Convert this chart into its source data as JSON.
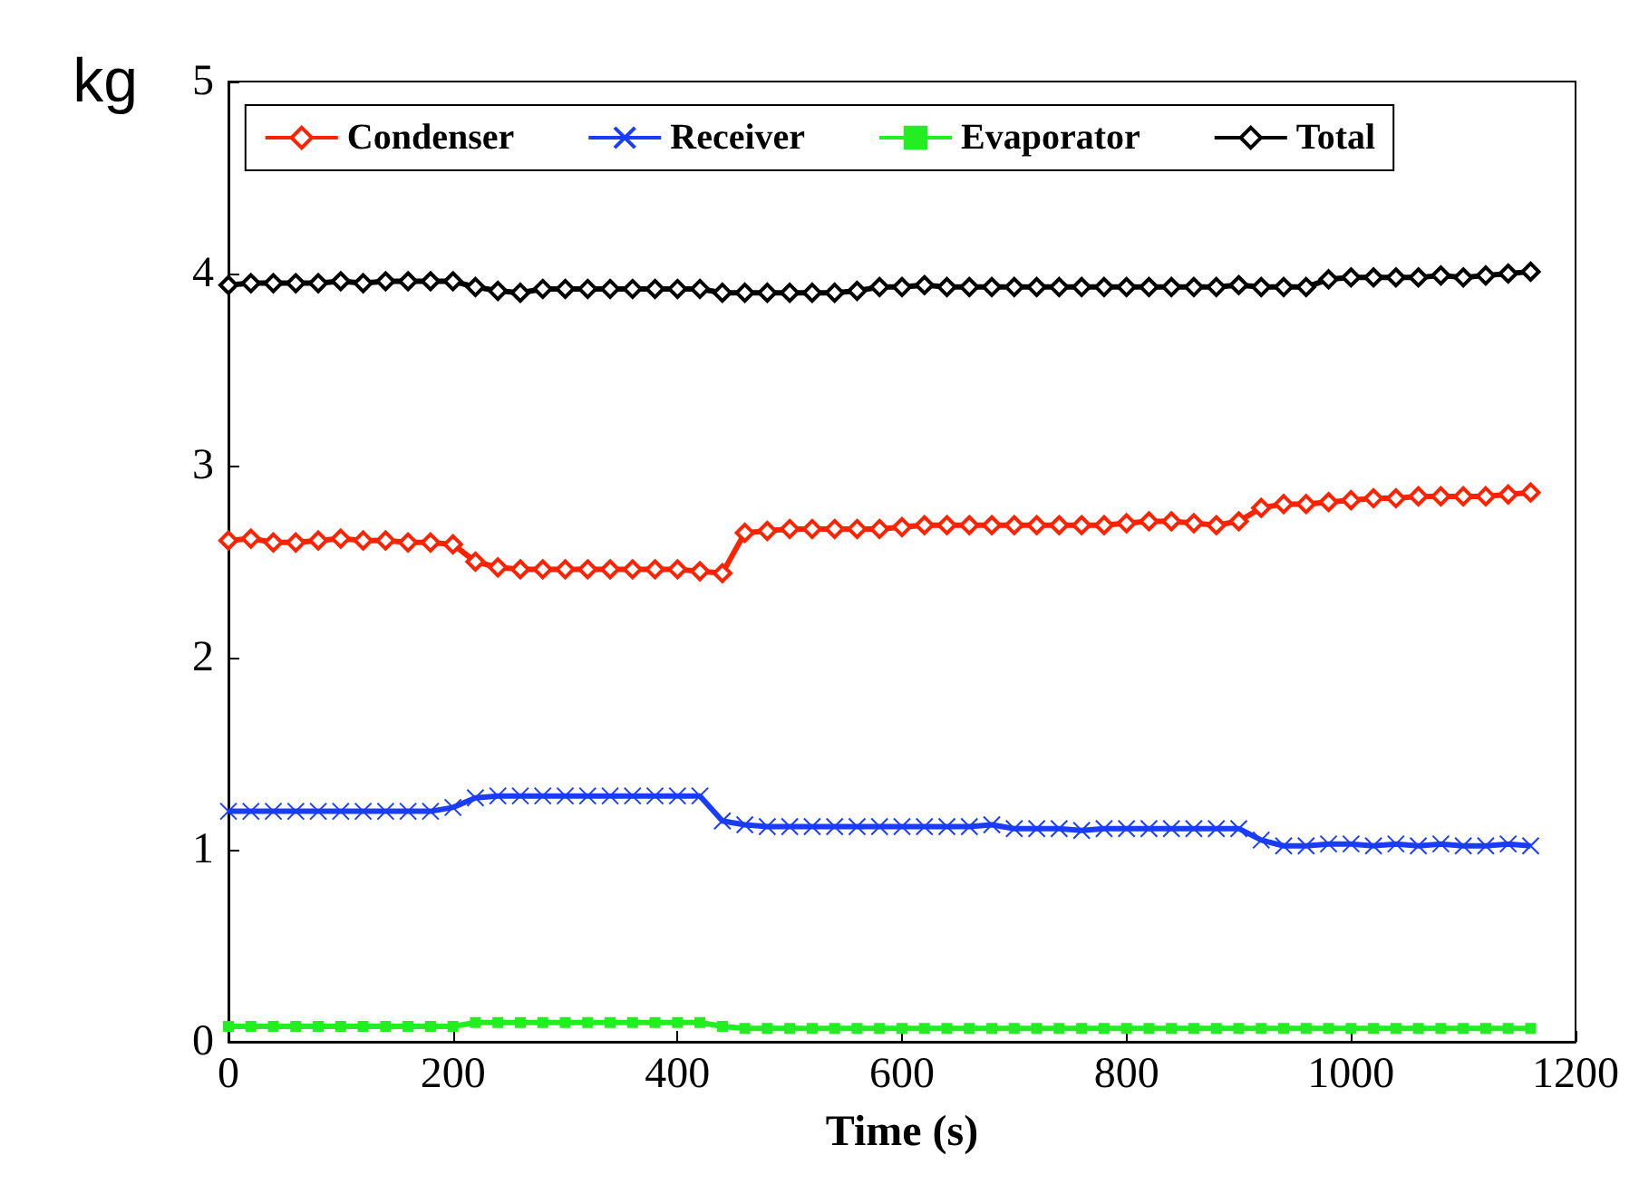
{
  "chart_data": {
    "type": "line",
    "xlabel": "Time (s)",
    "ylabel": "kg",
    "legend": "top",
    "grid": false,
    "line_style": "solid",
    "x": [
      0,
      20,
      40,
      60,
      80,
      100,
      120,
      140,
      160,
      180,
      200,
      220,
      240,
      260,
      280,
      300,
      320,
      340,
      360,
      380,
      400,
      420,
      440,
      460,
      480,
      500,
      520,
      540,
      560,
      580,
      600,
      620,
      640,
      660,
      680,
      700,
      720,
      740,
      760,
      780,
      800,
      820,
      840,
      860,
      880,
      900,
      920,
      940,
      960,
      980,
      1000,
      1020,
      1040,
      1060,
      1080,
      1100,
      1120,
      1140,
      1160
    ],
    "xlim": [
      0,
      1200
    ],
    "xticks": [
      0,
      200,
      400,
      600,
      800,
      1000,
      1200
    ],
    "ylim": [
      0,
      5
    ],
    "yticks": [
      0,
      1,
      2,
      3,
      4,
      5
    ],
    "series": [
      {
        "name": "Condenser",
        "color": "#ff2200",
        "marker": "diamond",
        "values": [
          2.61,
          2.62,
          2.6,
          2.6,
          2.61,
          2.62,
          2.61,
          2.61,
          2.6,
          2.6,
          2.59,
          2.5,
          2.47,
          2.46,
          2.46,
          2.46,
          2.46,
          2.46,
          2.46,
          2.46,
          2.46,
          2.45,
          2.44,
          2.65,
          2.66,
          2.67,
          2.67,
          2.67,
          2.67,
          2.67,
          2.68,
          2.69,
          2.69,
          2.69,
          2.69,
          2.69,
          2.69,
          2.69,
          2.69,
          2.69,
          2.7,
          2.71,
          2.71,
          2.7,
          2.69,
          2.71,
          2.78,
          2.8,
          2.8,
          2.81,
          2.82,
          2.83,
          2.83,
          2.84,
          2.84,
          2.84,
          2.84,
          2.85,
          2.86
        ]
      },
      {
        "name": "Receiver",
        "color": "#1a3cff",
        "marker": "cross",
        "values": [
          1.2,
          1.2,
          1.2,
          1.2,
          1.2,
          1.2,
          1.2,
          1.2,
          1.2,
          1.2,
          1.22,
          1.27,
          1.28,
          1.28,
          1.28,
          1.28,
          1.28,
          1.28,
          1.28,
          1.28,
          1.28,
          1.28,
          1.15,
          1.13,
          1.12,
          1.12,
          1.12,
          1.12,
          1.12,
          1.12,
          1.12,
          1.12,
          1.12,
          1.12,
          1.13,
          1.11,
          1.11,
          1.11,
          1.1,
          1.11,
          1.11,
          1.11,
          1.11,
          1.11,
          1.11,
          1.11,
          1.05,
          1.02,
          1.02,
          1.03,
          1.03,
          1.02,
          1.03,
          1.02,
          1.03,
          1.02,
          1.02,
          1.03,
          1.02
        ]
      },
      {
        "name": "Evaporator",
        "color": "#22ee22",
        "marker": "square",
        "values": [
          0.08,
          0.08,
          0.08,
          0.08,
          0.08,
          0.08,
          0.08,
          0.08,
          0.08,
          0.08,
          0.08,
          0.1,
          0.1,
          0.1,
          0.1,
          0.1,
          0.1,
          0.1,
          0.1,
          0.1,
          0.1,
          0.1,
          0.08,
          0.07,
          0.07,
          0.07,
          0.07,
          0.07,
          0.07,
          0.07,
          0.07,
          0.07,
          0.07,
          0.07,
          0.07,
          0.07,
          0.07,
          0.07,
          0.07,
          0.07,
          0.07,
          0.07,
          0.07,
          0.07,
          0.07,
          0.07,
          0.07,
          0.07,
          0.07,
          0.07,
          0.07,
          0.07,
          0.07,
          0.07,
          0.07,
          0.07,
          0.07,
          0.07,
          0.07
        ]
      },
      {
        "name": "Total",
        "color": "#000000",
        "marker": "diamond",
        "values": [
          3.94,
          3.95,
          3.95,
          3.95,
          3.95,
          3.96,
          3.95,
          3.96,
          3.96,
          3.96,
          3.96,
          3.93,
          3.91,
          3.9,
          3.92,
          3.92,
          3.92,
          3.92,
          3.92,
          3.92,
          3.92,
          3.92,
          3.9,
          3.9,
          3.9,
          3.9,
          3.9,
          3.9,
          3.91,
          3.93,
          3.93,
          3.94,
          3.93,
          3.93,
          3.93,
          3.93,
          3.93,
          3.93,
          3.93,
          3.93,
          3.93,
          3.93,
          3.93,
          3.93,
          3.93,
          3.94,
          3.93,
          3.93,
          3.93,
          3.97,
          3.98,
          3.98,
          3.98,
          3.98,
          3.99,
          3.98,
          3.99,
          4.0,
          4.01
        ]
      }
    ]
  }
}
